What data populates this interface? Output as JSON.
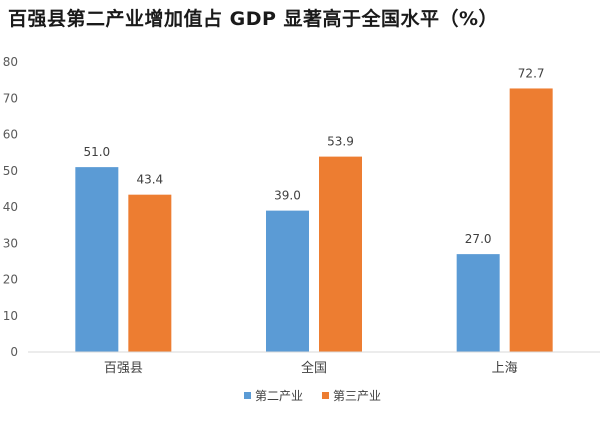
{
  "chart_data": {
    "type": "bar",
    "title": "百强县第二产业增加值占 GDP 显著高于全国水平（%）",
    "categories": [
      "百强县",
      "全国",
      "上海"
    ],
    "series": [
      {
        "name": "第二产业",
        "values": [
          51.0,
          39.0,
          27.0
        ],
        "color": "#5b9bd5"
      },
      {
        "name": "第三产业",
        "values": [
          43.4,
          53.9,
          72.7
        ],
        "color": "#ed7d31"
      }
    ],
    "ylim": [
      0,
      80
    ],
    "yticks": [
      0,
      10,
      20,
      30,
      40,
      50,
      60,
      70,
      80
    ],
    "grid": false,
    "legend": "bottom"
  }
}
